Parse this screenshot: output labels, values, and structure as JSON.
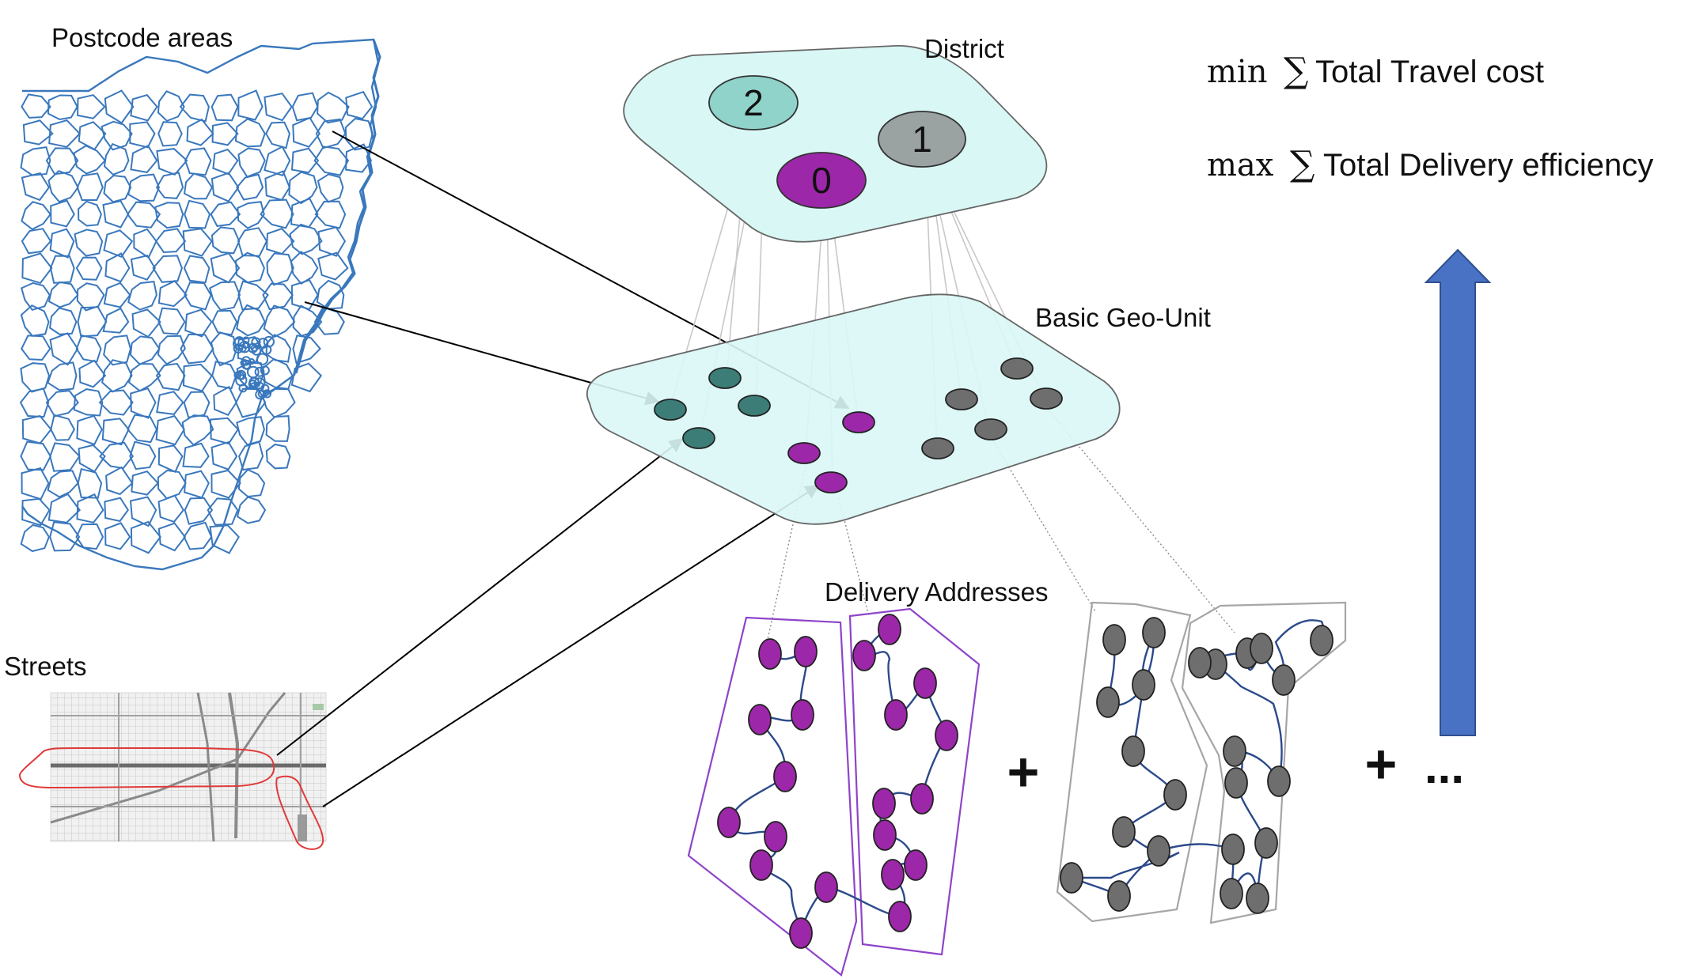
{
  "labels": {
    "postcode_areas": "Postcode areas",
    "streets": "Streets",
    "district": "District",
    "basic_geo_unit": "Basic Geo-Unit",
    "delivery_addresses": "Delivery Addresses",
    "plus_1": "+",
    "plus_2": "+",
    "ellipsis": "..."
  },
  "objectives": {
    "min_op": "min",
    "min_sum": "∑",
    "min_text": "Total Travel cost",
    "max_op": "max",
    "max_sum": "∑",
    "max_text": "Total Delivery efficiency"
  },
  "districts": [
    {
      "id": "2",
      "color": "#8fd3cb",
      "text_color": "#1a3a3a"
    },
    {
      "id": "1",
      "color": "#9aa2a2",
      "text_color": "#ffffff"
    },
    {
      "id": "0",
      "color": "#9c27a8",
      "text_color": "#ffffff"
    }
  ],
  "colors": {
    "plane_fill": "#d9f7f5",
    "teal_unit": "#3d7d78",
    "purple_unit": "#9c27a8",
    "grey_unit": "#6e6e6e",
    "map_line": "#3a78bd",
    "route_line": "#2c4a8a",
    "purple_outline": "#8e44c9",
    "grey_outline": "#a6a6a6",
    "arrow_fill": "#4a72c4",
    "street_highlight": "#e03a3a"
  },
  "icons": {
    "up_arrow": "up-arrow-icon"
  }
}
